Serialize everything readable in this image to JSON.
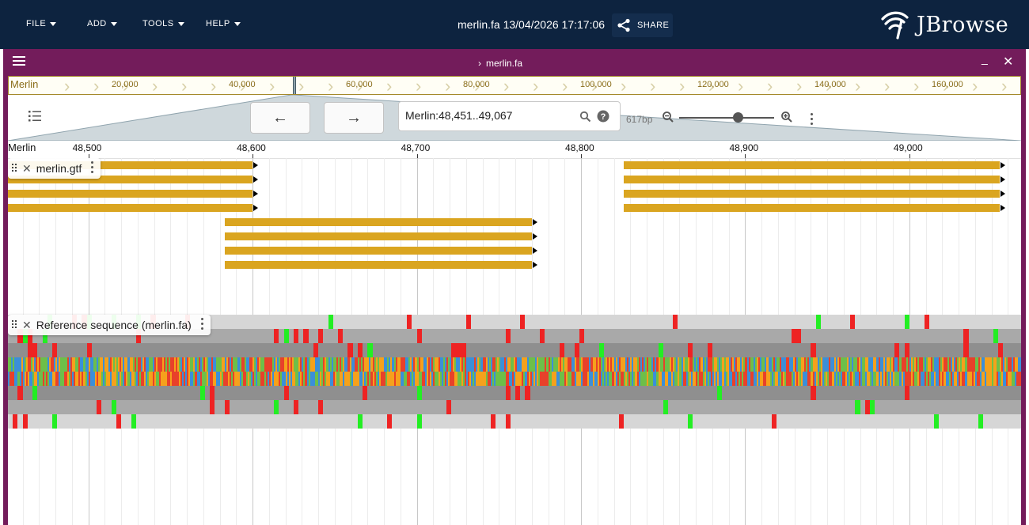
{
  "menu": {
    "file": "FILE",
    "add": "ADD",
    "tools": "TOOLS",
    "help": "HELP"
  },
  "session": {
    "title": "merlin.fa 13/04/2026 17:17:06",
    "share": "SHARE"
  },
  "logo": {
    "text": "JBrowse"
  },
  "view": {
    "title": "merlin.fa",
    "minimize": "_",
    "close": "✕"
  },
  "overview": {
    "ref": "Merlin",
    "ticks": [
      {
        "bp": 20000,
        "label": "20,000"
      },
      {
        "bp": 40000,
        "label": "40,000"
      },
      {
        "bp": 60000,
        "label": "60,000"
      },
      {
        "bp": 80000,
        "label": "80,000"
      },
      {
        "bp": 100000,
        "label": "100,000"
      },
      {
        "bp": 120000,
        "label": "120,000"
      },
      {
        "bp": 140000,
        "label": "140,000"
      },
      {
        "bp": 160000,
        "label": "160,000"
      }
    ]
  },
  "nav": {
    "back": "←",
    "forward": "→",
    "locstring": "Merlin:48,451..49,067",
    "bp_width": "617bp",
    "zoom_level": 0.62
  },
  "ruler": {
    "ref": "Merlin",
    "start": 48451,
    "end": 49067,
    "ticks": [
      {
        "bp": 48500,
        "label": "48,500"
      },
      {
        "bp": 48600,
        "label": "48,600"
      },
      {
        "bp": 48700,
        "label": "48,700"
      },
      {
        "bp": 48800,
        "label": "48,800"
      },
      {
        "bp": 48900,
        "label": "48,900"
      },
      {
        "bp": 49000,
        "label": "49,000"
      }
    ]
  },
  "tracks": {
    "gtf": {
      "name": "merlin.gtf",
      "color": "#daa520",
      "features": [
        {
          "start": 48451,
          "end": 48600,
          "row": 0
        },
        {
          "start": 48451,
          "end": 48600,
          "row": 1
        },
        {
          "start": 48451,
          "end": 48600,
          "row": 2
        },
        {
          "start": 48451,
          "end": 48600,
          "row": 3
        },
        {
          "start": 48583,
          "end": 48770,
          "row": 4
        },
        {
          "start": 48583,
          "end": 48770,
          "row": 5
        },
        {
          "start": 48583,
          "end": 48770,
          "row": 6
        },
        {
          "start": 48583,
          "end": 48770,
          "row": 7
        },
        {
          "start": 48826,
          "end": 49055,
          "row": 0
        },
        {
          "start": 48826,
          "end": 49055,
          "row": 1
        },
        {
          "start": 48826,
          "end": 49055,
          "row": 2
        },
        {
          "start": 48826,
          "end": 49055,
          "row": 3
        }
      ]
    },
    "sequence": {
      "name": "Reference sequence (merlin.fa)",
      "base_colors": {
        "A": "#6dbf49",
        "C": "#3b8fd9",
        "G": "#f5a11c",
        "T": "#e8412a"
      },
      "start_codon_color": "#23ee23",
      "stop_codon_color": "#ee2323"
    }
  }
}
